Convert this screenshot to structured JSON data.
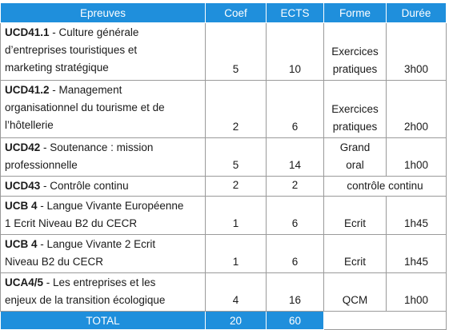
{
  "header": {
    "epreuves": "Epreuves",
    "coef": "Coef",
    "ects": "ECTS",
    "forme": "Forme",
    "duree": "Durée"
  },
  "rows": [
    {
      "code": "UCD41.1",
      "title_lines": [
        " - Culture générale",
        "d’entreprises touristiques et",
        "marketing stratégique"
      ],
      "coef": "5",
      "ects": "10",
      "forme_lines": [
        "Exercices",
        "pratiques"
      ],
      "duree": "3h00"
    },
    {
      "code": "UCD41.2",
      "title_lines": [
        " - Management",
        "organisationnel du tourisme et de",
        "l’hôtellerie"
      ],
      "coef": "2",
      "ects": "6",
      "forme_lines": [
        "Exercices",
        "pratiques"
      ],
      "duree": "2h00"
    },
    {
      "code": "UCD42",
      "title_lines": [
        " - Soutenance : mission",
        "professionnelle"
      ],
      "coef": "5",
      "ects": "14",
      "forme_lines": [
        "Grand",
        "oral"
      ],
      "duree": "1h00"
    },
    {
      "code": "UCD43",
      "title_lines": [
        " - Contrôle continu"
      ],
      "coef": "2",
      "ects": "2",
      "merged_forme_duree": "contrôle continu"
    },
    {
      "code": "UCB 4",
      "title_lines": [
        " - Langue Vivante Européenne",
        "1 Ecrit Niveau B2 du CECR"
      ],
      "coef": "1",
      "ects": "6",
      "forme_lines": [
        "Ecrit"
      ],
      "duree": "1h45"
    },
    {
      "code": "UCB 4",
      "title_lines": [
        " - Langue Vivante 2 Ecrit",
        "Niveau B2 du CECR"
      ],
      "coef": "1",
      "ects": "6",
      "forme_lines": [
        "Ecrit"
      ],
      "duree": "1h45"
    },
    {
      "code": "UCA4/5",
      "title_lines": [
        " - Les entreprises et les",
        "enjeux de la transition écologique"
      ],
      "coef": "4",
      "ects": "16",
      "forme_lines": [
        "QCM"
      ],
      "duree": "1h00"
    }
  ],
  "total": {
    "label": "TOTAL",
    "coef": "20",
    "ects": "60"
  }
}
